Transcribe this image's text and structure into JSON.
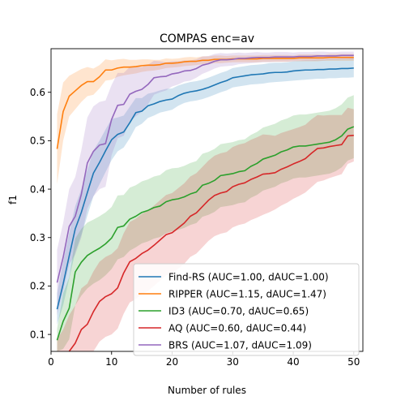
{
  "chart_data": {
    "type": "line",
    "title": "COMPAS enc=av",
    "xlabel": "Number of rules",
    "ylabel": "f1",
    "xlim": [
      0,
      51.5
    ],
    "ylim": [
      0.065,
      0.69
    ],
    "xticks": [
      0,
      10,
      20,
      30,
      40,
      50
    ],
    "yticks": [
      0.1,
      0.2,
      0.3,
      0.4,
      0.5,
      0.6
    ],
    "xtick_labels": [
      "0",
      "10",
      "20",
      "30",
      "40",
      "50"
    ],
    "ytick_labels": [
      "0.1",
      "0.2",
      "0.3",
      "0.4",
      "0.5",
      "0.6"
    ],
    "grid": false,
    "legend_position": "lower-right",
    "x": [
      1,
      2,
      3,
      4,
      5,
      6,
      7,
      8,
      9,
      10,
      11,
      12,
      13,
      14,
      15,
      16,
      17,
      18,
      19,
      20,
      21,
      22,
      23,
      24,
      25,
      26,
      27,
      28,
      29,
      30,
      31,
      32,
      33,
      34,
      35,
      36,
      37,
      38,
      39,
      40,
      41,
      42,
      43,
      44,
      45,
      46,
      47,
      48,
      49,
      50
    ],
    "series": [
      {
        "name": "Find-RS (AUC=1.00, dAUC=1.00)",
        "color": "#1f77b4",
        "values": [
          0.152,
          0.204,
          0.262,
          0.318,
          0.352,
          0.393,
          0.433,
          0.455,
          0.479,
          0.502,
          0.513,
          0.518,
          0.537,
          0.558,
          0.561,
          0.572,
          0.576,
          0.581,
          0.584,
          0.586,
          0.593,
          0.598,
          0.601,
          0.603,
          0.606,
          0.61,
          0.615,
          0.62,
          0.624,
          0.63,
          0.632,
          0.634,
          0.636,
          0.637,
          0.638,
          0.64,
          0.641,
          0.641,
          0.642,
          0.644,
          0.645,
          0.646,
          0.646,
          0.647,
          0.647,
          0.648,
          0.648,
          0.649,
          0.649,
          0.65
        ],
        "band_low": [
          0.12,
          0.16,
          0.215,
          0.27,
          0.305,
          0.345,
          0.385,
          0.41,
          0.435,
          0.46,
          0.478,
          0.486,
          0.505,
          0.528,
          0.535,
          0.547,
          0.552,
          0.558,
          0.561,
          0.564,
          0.572,
          0.578,
          0.581,
          0.583,
          0.586,
          0.59,
          0.595,
          0.6,
          0.604,
          0.61,
          0.612,
          0.614,
          0.616,
          0.617,
          0.618,
          0.62,
          0.621,
          0.622,
          0.623,
          0.624,
          0.625,
          0.626,
          0.627,
          0.628,
          0.628,
          0.629,
          0.629,
          0.63,
          0.63,
          0.631
        ],
        "band_high": [
          0.185,
          0.25,
          0.31,
          0.365,
          0.4,
          0.44,
          0.48,
          0.5,
          0.523,
          0.545,
          0.548,
          0.552,
          0.57,
          0.588,
          0.588,
          0.597,
          0.6,
          0.604,
          0.607,
          0.608,
          0.614,
          0.618,
          0.621,
          0.623,
          0.626,
          0.63,
          0.635,
          0.64,
          0.644,
          0.65,
          0.652,
          0.654,
          0.656,
          0.657,
          0.658,
          0.66,
          0.661,
          0.661,
          0.662,
          0.664,
          0.665,
          0.666,
          0.666,
          0.667,
          0.667,
          0.668,
          0.668,
          0.669,
          0.669,
          0.67
        ]
      },
      {
        "name": "RIPPER (AUC=1.15, dAUC=1.47)",
        "color": "#ff7f0e",
        "values": [
          0.483,
          0.56,
          0.592,
          0.603,
          0.614,
          0.622,
          0.622,
          0.632,
          0.646,
          0.646,
          0.65,
          0.652,
          0.652,
          0.653,
          0.655,
          0.656,
          0.656,
          0.657,
          0.66,
          0.66,
          0.661,
          0.663,
          0.664,
          0.664,
          0.666,
          0.666,
          0.668,
          0.668,
          0.668,
          0.669,
          0.669,
          0.669,
          0.669,
          0.669,
          0.67,
          0.67,
          0.67,
          0.67,
          0.67,
          0.67,
          0.671,
          0.671,
          0.671,
          0.671,
          0.671,
          0.672,
          0.672,
          0.672,
          0.672,
          0.672
        ],
        "band_low": [
          0.41,
          0.5,
          0.55,
          0.565,
          0.58,
          0.592,
          0.595,
          0.608,
          0.624,
          0.626,
          0.632,
          0.635,
          0.637,
          0.639,
          0.642,
          0.644,
          0.645,
          0.647,
          0.65,
          0.651,
          0.652,
          0.654,
          0.655,
          0.656,
          0.658,
          0.658,
          0.66,
          0.66,
          0.661,
          0.662,
          0.662,
          0.662,
          0.662,
          0.662,
          0.663,
          0.663,
          0.663,
          0.663,
          0.663,
          0.664,
          0.664,
          0.664,
          0.664,
          0.664,
          0.665,
          0.665,
          0.665,
          0.665,
          0.665,
          0.665
        ],
        "band_high": [
          0.555,
          0.62,
          0.634,
          0.641,
          0.648,
          0.652,
          0.649,
          0.656,
          0.668,
          0.666,
          0.668,
          0.669,
          0.667,
          0.667,
          0.668,
          0.668,
          0.667,
          0.667,
          0.67,
          0.669,
          0.67,
          0.672,
          0.673,
          0.672,
          0.674,
          0.674,
          0.676,
          0.676,
          0.675,
          0.676,
          0.676,
          0.676,
          0.676,
          0.676,
          0.677,
          0.677,
          0.677,
          0.677,
          0.677,
          0.676,
          0.678,
          0.678,
          0.678,
          0.678,
          0.677,
          0.679,
          0.679,
          0.679,
          0.679,
          0.679
        ]
      },
      {
        "name": "ID3 (AUC=0.70, dAUC=0.65)",
        "color": "#2ca02c",
        "values": [
          0.088,
          0.127,
          0.154,
          0.229,
          0.249,
          0.263,
          0.271,
          0.278,
          0.287,
          0.299,
          0.321,
          0.324,
          0.338,
          0.344,
          0.352,
          0.356,
          0.362,
          0.365,
          0.374,
          0.378,
          0.38,
          0.384,
          0.39,
          0.394,
          0.408,
          0.412,
          0.418,
          0.428,
          0.43,
          0.432,
          0.436,
          0.438,
          0.447,
          0.453,
          0.462,
          0.466,
          0.47,
          0.477,
          0.481,
          0.487,
          0.489,
          0.489,
          0.491,
          0.493,
          0.495,
          0.497,
          0.502,
          0.51,
          0.524,
          0.529
        ],
        "band_low": [
          0.065,
          0.07,
          0.09,
          0.16,
          0.18,
          0.195,
          0.205,
          0.212,
          0.222,
          0.235,
          0.255,
          0.26,
          0.273,
          0.28,
          0.288,
          0.292,
          0.298,
          0.301,
          0.309,
          0.313,
          0.316,
          0.32,
          0.326,
          0.33,
          0.343,
          0.347,
          0.353,
          0.363,
          0.365,
          0.367,
          0.371,
          0.373,
          0.382,
          0.388,
          0.397,
          0.401,
          0.405,
          0.412,
          0.416,
          0.422,
          0.424,
          0.424,
          0.426,
          0.428,
          0.43,
          0.432,
          0.437,
          0.445,
          0.459,
          0.464
        ],
        "band_high": [
          0.112,
          0.185,
          0.218,
          0.298,
          0.318,
          0.331,
          0.337,
          0.344,
          0.352,
          0.363,
          0.387,
          0.388,
          0.403,
          0.408,
          0.416,
          0.42,
          0.426,
          0.429,
          0.439,
          0.443,
          0.444,
          0.448,
          0.454,
          0.458,
          0.473,
          0.477,
          0.483,
          0.493,
          0.495,
          0.497,
          0.501,
          0.503,
          0.512,
          0.518,
          0.527,
          0.531,
          0.535,
          0.542,
          0.546,
          0.552,
          0.554,
          0.554,
          0.556,
          0.558,
          0.56,
          0.562,
          0.567,
          0.575,
          0.589,
          0.594
        ]
      },
      {
        "name": "AQ (AUC=0.60, dAUC=0.44)",
        "color": "#d62728",
        "values": [
          0.03,
          0.045,
          0.065,
          0.082,
          0.11,
          0.121,
          0.147,
          0.168,
          0.178,
          0.184,
          0.196,
          0.227,
          0.25,
          0.257,
          0.267,
          0.274,
          0.284,
          0.295,
          0.306,
          0.31,
          0.32,
          0.33,
          0.344,
          0.351,
          0.364,
          0.377,
          0.387,
          0.392,
          0.395,
          0.405,
          0.41,
          0.413,
          0.42,
          0.425,
          0.431,
          0.432,
          0.434,
          0.441,
          0.446,
          0.452,
          0.457,
          0.463,
          0.474,
          0.484,
          0.485,
          0.488,
          0.49,
          0.492,
          0.51,
          0.511
        ],
        "band_low": [
          0.0,
          0.0,
          0.0,
          0.0,
          0.02,
          0.04,
          0.065,
          0.085,
          0.095,
          0.1,
          0.112,
          0.143,
          0.166,
          0.173,
          0.183,
          0.19,
          0.2,
          0.211,
          0.222,
          0.226,
          0.236,
          0.246,
          0.26,
          0.267,
          0.28,
          0.293,
          0.303,
          0.308,
          0.311,
          0.321,
          0.326,
          0.329,
          0.336,
          0.341,
          0.347,
          0.352,
          0.358,
          0.366,
          0.372,
          0.38,
          0.386,
          0.393,
          0.404,
          0.415,
          0.418,
          0.423,
          0.427,
          0.431,
          0.452,
          0.457
        ],
        "band_high": [
          0.09,
          0.11,
          0.14,
          0.16,
          0.195,
          0.205,
          0.23,
          0.25,
          0.26,
          0.266,
          0.278,
          0.309,
          0.332,
          0.339,
          0.349,
          0.356,
          0.366,
          0.377,
          0.388,
          0.392,
          0.402,
          0.412,
          0.426,
          0.433,
          0.446,
          0.459,
          0.469,
          0.474,
          0.477,
          0.487,
          0.492,
          0.495,
          0.502,
          0.507,
          0.513,
          0.512,
          0.51,
          0.516,
          0.52,
          0.524,
          0.528,
          0.533,
          0.544,
          0.553,
          0.552,
          0.553,
          0.553,
          0.553,
          0.568,
          0.565
        ]
      },
      {
        "name": "BRS (AUC=1.07, dAUC=1.09)",
        "color": "#9467bd",
        "values": [
          0.207,
          0.259,
          0.323,
          0.344,
          0.389,
          0.454,
          0.478,
          0.491,
          0.494,
          0.544,
          0.573,
          0.575,
          0.596,
          0.602,
          0.606,
          0.616,
          0.63,
          0.632,
          0.633,
          0.638,
          0.64,
          0.644,
          0.645,
          0.649,
          0.656,
          0.659,
          0.664,
          0.667,
          0.667,
          0.668,
          0.67,
          0.67,
          0.671,
          0.672,
          0.672,
          0.672,
          0.673,
          0.673,
          0.673,
          0.673,
          0.674,
          0.674,
          0.674,
          0.675,
          0.675,
          0.675,
          0.675,
          0.676,
          0.676,
          0.676
        ],
        "band_low": [
          0.14,
          0.19,
          0.245,
          0.265,
          0.3,
          0.36,
          0.385,
          0.4,
          0.405,
          0.47,
          0.505,
          0.51,
          0.54,
          0.55,
          0.56,
          0.575,
          0.595,
          0.6,
          0.604,
          0.612,
          0.616,
          0.622,
          0.624,
          0.63,
          0.638,
          0.643,
          0.649,
          0.653,
          0.654,
          0.655,
          0.658,
          0.659,
          0.66,
          0.661,
          0.662,
          0.662,
          0.663,
          0.663,
          0.663,
          0.664,
          0.665,
          0.665,
          0.665,
          0.666,
          0.666,
          0.667,
          0.667,
          0.668,
          0.668,
          0.668
        ],
        "band_high": [
          0.275,
          0.33,
          0.4,
          0.425,
          0.48,
          0.548,
          0.571,
          0.58,
          0.583,
          0.615,
          0.64,
          0.64,
          0.652,
          0.654,
          0.652,
          0.657,
          0.665,
          0.664,
          0.662,
          0.664,
          0.664,
          0.666,
          0.666,
          0.668,
          0.674,
          0.675,
          0.679,
          0.681,
          0.68,
          0.681,
          0.682,
          0.681,
          0.682,
          0.683,
          0.682,
          0.682,
          0.683,
          0.683,
          0.683,
          0.682,
          0.683,
          0.683,
          0.683,
          0.684,
          0.684,
          0.683,
          0.683,
          0.684,
          0.684,
          0.684
        ]
      }
    ]
  }
}
